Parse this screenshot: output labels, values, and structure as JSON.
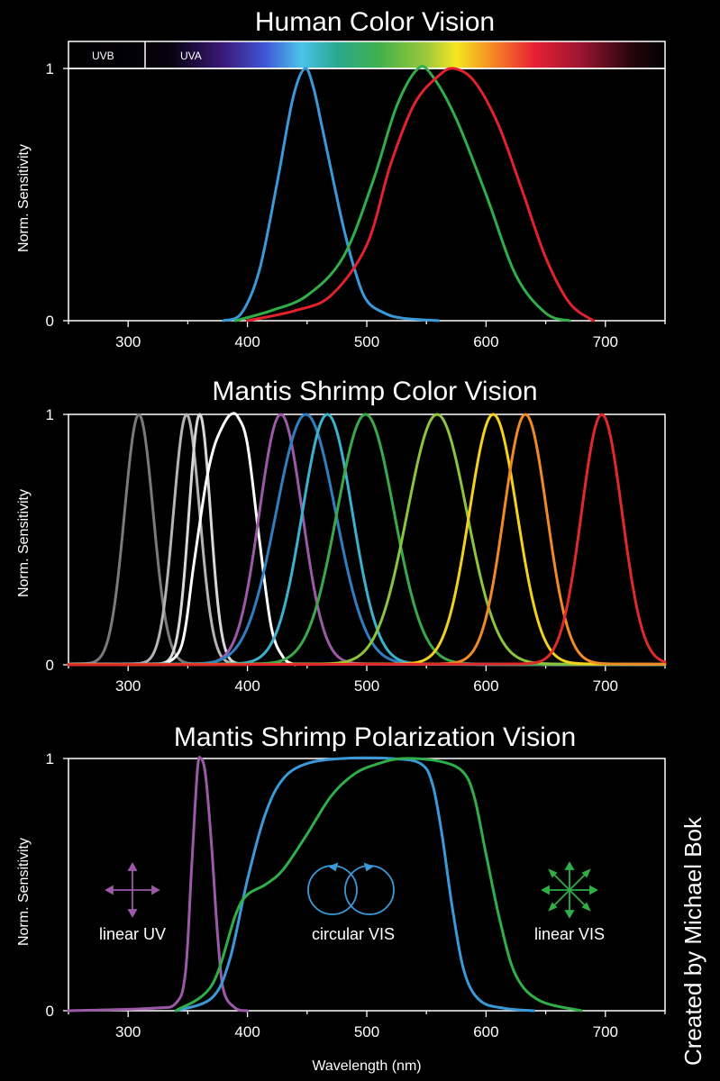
{
  "credit": "Created by Michael Bok",
  "chart_data": [
    {
      "type": "line",
      "title": "Human Color Vision",
      "ylabel": "Norm. Sensitivity",
      "xlabel": "",
      "xlim": [
        250,
        750
      ],
      "ylim": [
        0,
        1
      ],
      "xticks": [
        300,
        400,
        500,
        600,
        700
      ],
      "yticks": [
        0,
        1
      ],
      "spectrum_bar": {
        "uv_labels": [
          "UVB",
          "UVA"
        ],
        "uvb_end": 315
      },
      "series": [
        {
          "color": "#3a9ad9",
          "points": [
            [
              380,
              0
            ],
            [
              395,
              0.03
            ],
            [
              410,
              0.2
            ],
            [
              425,
              0.55
            ],
            [
              438,
              0.88
            ],
            [
              448,
              1.0
            ],
            [
              455,
              0.93
            ],
            [
              462,
              0.78
            ],
            [
              470,
              0.6
            ],
            [
              480,
              0.38
            ],
            [
              490,
              0.2
            ],
            [
              500,
              0.08
            ],
            [
              515,
              0.03
            ],
            [
              530,
              0.01
            ],
            [
              560,
              0
            ]
          ]
        },
        {
          "color": "#2fae4a",
          "points": [
            [
              390,
              0
            ],
            [
              420,
              0.04
            ],
            [
              450,
              0.1
            ],
            [
              480,
              0.25
            ],
            [
              505,
              0.55
            ],
            [
              525,
              0.85
            ],
            [
              543,
              1.0
            ],
            [
              555,
              0.97
            ],
            [
              575,
              0.8
            ],
            [
              600,
              0.5
            ],
            [
              625,
              0.18
            ],
            [
              650,
              0.03
            ],
            [
              670,
              0
            ]
          ]
        },
        {
          "color": "#e2232e",
          "points": [
            [
              400,
              0
            ],
            [
              440,
              0.04
            ],
            [
              470,
              0.1
            ],
            [
              500,
              0.3
            ],
            [
              520,
              0.62
            ],
            [
              540,
              0.86
            ],
            [
              560,
              0.97
            ],
            [
              573,
              1.0
            ],
            [
              590,
              0.95
            ],
            [
              610,
              0.78
            ],
            [
              630,
              0.52
            ],
            [
              650,
              0.25
            ],
            [
              670,
              0.07
            ],
            [
              690,
              0
            ]
          ]
        }
      ]
    },
    {
      "type": "line",
      "title": "Mantis Shrimp Color Vision",
      "ylabel": "Norm. Sensitivity",
      "xlabel": "",
      "xlim": [
        250,
        750
      ],
      "ylim": [
        0,
        1
      ],
      "xticks": [
        300,
        400,
        500,
        600,
        700
      ],
      "yticks": [
        0,
        1
      ],
      "series": [
        {
          "color": "#7a7a7a",
          "peak": 309,
          "width": 12
        },
        {
          "color": "#b4b4b4",
          "peak": 349,
          "width": 11
        },
        {
          "color": "#d8d8d8",
          "peak": 360,
          "width": 9
        },
        {
          "color": "#ffffff",
          "points": [
            [
              330,
              0
            ],
            [
              345,
              0.08
            ],
            [
              355,
              0.4
            ],
            [
              365,
              0.72
            ],
            [
              372,
              0.87
            ],
            [
              380,
              0.96
            ],
            [
              386,
              1.0
            ],
            [
              392,
              0.99
            ],
            [
              400,
              0.88
            ],
            [
              410,
              0.5
            ],
            [
              420,
              0.15
            ],
            [
              430,
              0.03
            ],
            [
              440,
              0
            ]
          ]
        },
        {
          "color": "#9b59a8",
          "peak": 428,
          "width": 18
        },
        {
          "color": "#2f7fc0",
          "peak": 449,
          "width": 25
        },
        {
          "color": "#3cb1cc",
          "peak": 467,
          "width": 21
        },
        {
          "color": "#3aa94a",
          "peak": 499,
          "width": 24
        },
        {
          "color": "#8cc43c",
          "peak": 559,
          "width": 25
        },
        {
          "color": "#f2d21c",
          "peak": 606,
          "width": 20
        },
        {
          "color": "#ef8a24",
          "peak": 633,
          "width": 18
        },
        {
          "color": "#e02a2a",
          "peak": 697,
          "width": 17
        }
      ]
    },
    {
      "type": "line",
      "title": "Mantis Shrimp Polarization Vision",
      "ylabel": "Norm. Sensitivity",
      "xlabel": "Wavelength (nm)",
      "xlim": [
        250,
        750
      ],
      "ylim": [
        0,
        1
      ],
      "xticks": [
        300,
        400,
        500,
        600,
        700
      ],
      "yticks": [
        0,
        1
      ],
      "annotations": [
        {
          "label": "linear UV",
          "icon": "linear-polarization-icon",
          "color": "#9b59a8"
        },
        {
          "label": "circular VIS",
          "icon": "circular-polarization-icon",
          "color": "#3a9ad9"
        },
        {
          "label": "linear VIS",
          "icon": "multi-direction-polarization-icon",
          "color": "#2fae4a"
        }
      ],
      "series": [
        {
          "color": "#9b59a8",
          "points": [
            [
              250,
              0
            ],
            [
              320,
              0.01
            ],
            [
              340,
              0.03
            ],
            [
              348,
              0.15
            ],
            [
              353,
              0.55
            ],
            [
              358,
              0.95
            ],
            [
              361,
              1.0
            ],
            [
              365,
              0.93
            ],
            [
              370,
              0.65
            ],
            [
              375,
              0.3
            ],
            [
              380,
              0.08
            ],
            [
              390,
              0.01
            ],
            [
              400,
              0
            ]
          ]
        },
        {
          "color": "#3a9ad9",
          "points": [
            [
              340,
              0
            ],
            [
              370,
              0.05
            ],
            [
              385,
              0.2
            ],
            [
              400,
              0.52
            ],
            [
              415,
              0.78
            ],
            [
              430,
              0.92
            ],
            [
              450,
              0.98
            ],
            [
              480,
              1.0
            ],
            [
              520,
              1.0
            ],
            [
              545,
              0.98
            ],
            [
              555,
              0.9
            ],
            [
              563,
              0.7
            ],
            [
              572,
              0.4
            ],
            [
              582,
              0.15
            ],
            [
              595,
              0.04
            ],
            [
              615,
              0.01
            ],
            [
              640,
              0
            ]
          ]
        },
        {
          "color": "#2fae4a",
          "points": [
            [
              340,
              0
            ],
            [
              370,
              0.1
            ],
            [
              390,
              0.38
            ],
            [
              400,
              0.46
            ],
            [
              415,
              0.5
            ],
            [
              430,
              0.56
            ],
            [
              450,
              0.7
            ],
            [
              470,
              0.85
            ],
            [
              490,
              0.94
            ],
            [
              510,
              0.98
            ],
            [
              530,
              1.0
            ],
            [
              560,
              0.99
            ],
            [
              580,
              0.95
            ],
            [
              590,
              0.85
            ],
            [
              600,
              0.62
            ],
            [
              612,
              0.35
            ],
            [
              625,
              0.14
            ],
            [
              645,
              0.04
            ],
            [
              680,
              0
            ]
          ]
        }
      ]
    }
  ]
}
